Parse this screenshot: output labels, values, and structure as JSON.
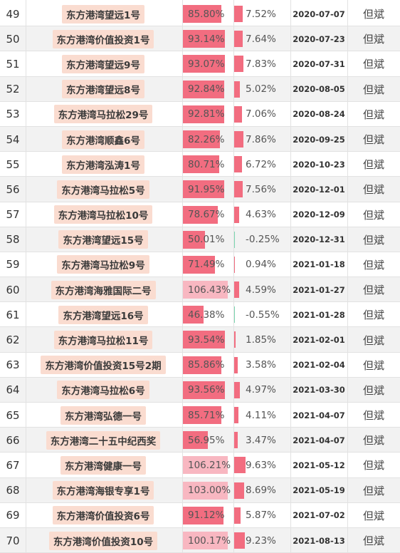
{
  "table": {
    "rows": [
      {
        "idx": "49",
        "name": "东方港湾望远1号",
        "pos": "85.80%",
        "pos_value": 85.8,
        "ret": "7.52%",
        "ret_value": 7.52,
        "date": "2020-07-07",
        "manager": "但斌"
      },
      {
        "idx": "50",
        "name": "东方港湾价值投资1号",
        "pos": "93.14%",
        "pos_value": 93.14,
        "ret": "7.64%",
        "ret_value": 7.64,
        "date": "2020-07-23",
        "manager": "但斌"
      },
      {
        "idx": "51",
        "name": "东方港湾望远9号",
        "pos": "93.07%",
        "pos_value": 93.07,
        "ret": "7.83%",
        "ret_value": 7.83,
        "date": "2020-07-31",
        "manager": "但斌"
      },
      {
        "idx": "52",
        "name": "东方港湾望远8号",
        "pos": "92.84%",
        "pos_value": 92.84,
        "ret": "5.02%",
        "ret_value": 5.02,
        "date": "2020-08-05",
        "manager": "但斌"
      },
      {
        "idx": "53",
        "name": "东方港湾马拉松29号",
        "pos": "92.81%",
        "pos_value": 92.81,
        "ret": "7.06%",
        "ret_value": 7.06,
        "date": "2020-08-24",
        "manager": "但斌"
      },
      {
        "idx": "54",
        "name": "东方港湾顺鑫6号",
        "pos": "82.26%",
        "pos_value": 82.26,
        "ret": "7.86%",
        "ret_value": 7.86,
        "date": "2020-09-25",
        "manager": "但斌"
      },
      {
        "idx": "55",
        "name": "东方港湾泓涛1号",
        "pos": "80.71%",
        "pos_value": 80.71,
        "ret": "6.72%",
        "ret_value": 6.72,
        "date": "2020-10-23",
        "manager": "但斌"
      },
      {
        "idx": "56",
        "name": "东方港湾马拉松5号",
        "pos": "91.95%",
        "pos_value": 91.95,
        "ret": "7.56%",
        "ret_value": 7.56,
        "date": "2020-12-01",
        "manager": "但斌"
      },
      {
        "idx": "57",
        "name": "东方港湾马拉松10号",
        "pos": "78.67%",
        "pos_value": 78.67,
        "ret": "4.63%",
        "ret_value": 4.63,
        "date": "2020-12-09",
        "manager": "但斌"
      },
      {
        "idx": "58",
        "name": "东方港湾望远15号",
        "pos": "50.01%",
        "pos_value": 50.01,
        "ret": "-0.25%",
        "ret_value": -0.25,
        "date": "2020-12-31",
        "manager": "但斌"
      },
      {
        "idx": "59",
        "name": "东方港湾马拉松9号",
        "pos": "71.49%",
        "pos_value": 71.49,
        "ret": "0.94%",
        "ret_value": 0.94,
        "date": "2021-01-18",
        "manager": "但斌"
      },
      {
        "idx": "60",
        "name": "东方港湾海雅国际二号",
        "pos": "106.43%",
        "pos_value": 106.43,
        "ret": "4.59%",
        "ret_value": 4.59,
        "date": "2021-01-27",
        "manager": "但斌"
      },
      {
        "idx": "61",
        "name": "东方港湾望远16号",
        "pos": "46.38%",
        "pos_value": 46.38,
        "ret": "-0.55%",
        "ret_value": -0.55,
        "date": "2021-01-28",
        "manager": "但斌"
      },
      {
        "idx": "62",
        "name": "东方港湾马拉松11号",
        "pos": "93.54%",
        "pos_value": 93.54,
        "ret": "1.85%",
        "ret_value": 1.85,
        "date": "2021-02-01",
        "manager": "但斌"
      },
      {
        "idx": "63",
        "name": "东方港湾价值投资15号2期",
        "pos": "85.86%",
        "pos_value": 85.86,
        "ret": "3.58%",
        "ret_value": 3.58,
        "date": "2021-02-04",
        "manager": "但斌"
      },
      {
        "idx": "64",
        "name": "东方港湾马拉松6号",
        "pos": "93.56%",
        "pos_value": 93.56,
        "ret": "4.97%",
        "ret_value": 4.97,
        "date": "2021-03-30",
        "manager": "但斌"
      },
      {
        "idx": "65",
        "name": "东方港湾弘德一号",
        "pos": "85.71%",
        "pos_value": 85.71,
        "ret": "4.11%",
        "ret_value": 4.11,
        "date": "2021-04-07",
        "manager": "但斌"
      },
      {
        "idx": "66",
        "name": "东方港湾二十五中纪西奖",
        "pos": "56.95%",
        "pos_value": 56.95,
        "ret": "3.47%",
        "ret_value": 3.47,
        "date": "2021-04-07",
        "manager": "但斌"
      },
      {
        "idx": "67",
        "name": "东方港湾健康一号",
        "pos": "106.21%",
        "pos_value": 106.21,
        "ret": "9.63%",
        "ret_value": 9.63,
        "date": "2021-05-12",
        "manager": "但斌"
      },
      {
        "idx": "68",
        "name": "东方港湾海银专享1号",
        "pos": "103.00%",
        "pos_value": 103.0,
        "ret": "8.69%",
        "ret_value": 8.69,
        "date": "2021-05-19",
        "manager": "但斌"
      },
      {
        "idx": "69",
        "name": "东方港湾价值投资6号",
        "pos": "91.12%",
        "pos_value": 91.12,
        "ret": "5.87%",
        "ret_value": 5.87,
        "date": "2021-07-02",
        "manager": "但斌"
      },
      {
        "idx": "70",
        "name": "东方港湾价值投资10号",
        "pos": "100.17%",
        "pos_value": 100.17,
        "ret": "9.23%",
        "ret_value": 9.23,
        "date": "2021-08-13",
        "manager": "但斌"
      }
    ]
  },
  "colors": {
    "bar": "#f26d80",
    "bar_over_100": "#f8b7c1",
    "negative": "#7cd6b0",
    "name_tag_bg": "#fadcd0",
    "alt_row": "#f2f2f2"
  }
}
